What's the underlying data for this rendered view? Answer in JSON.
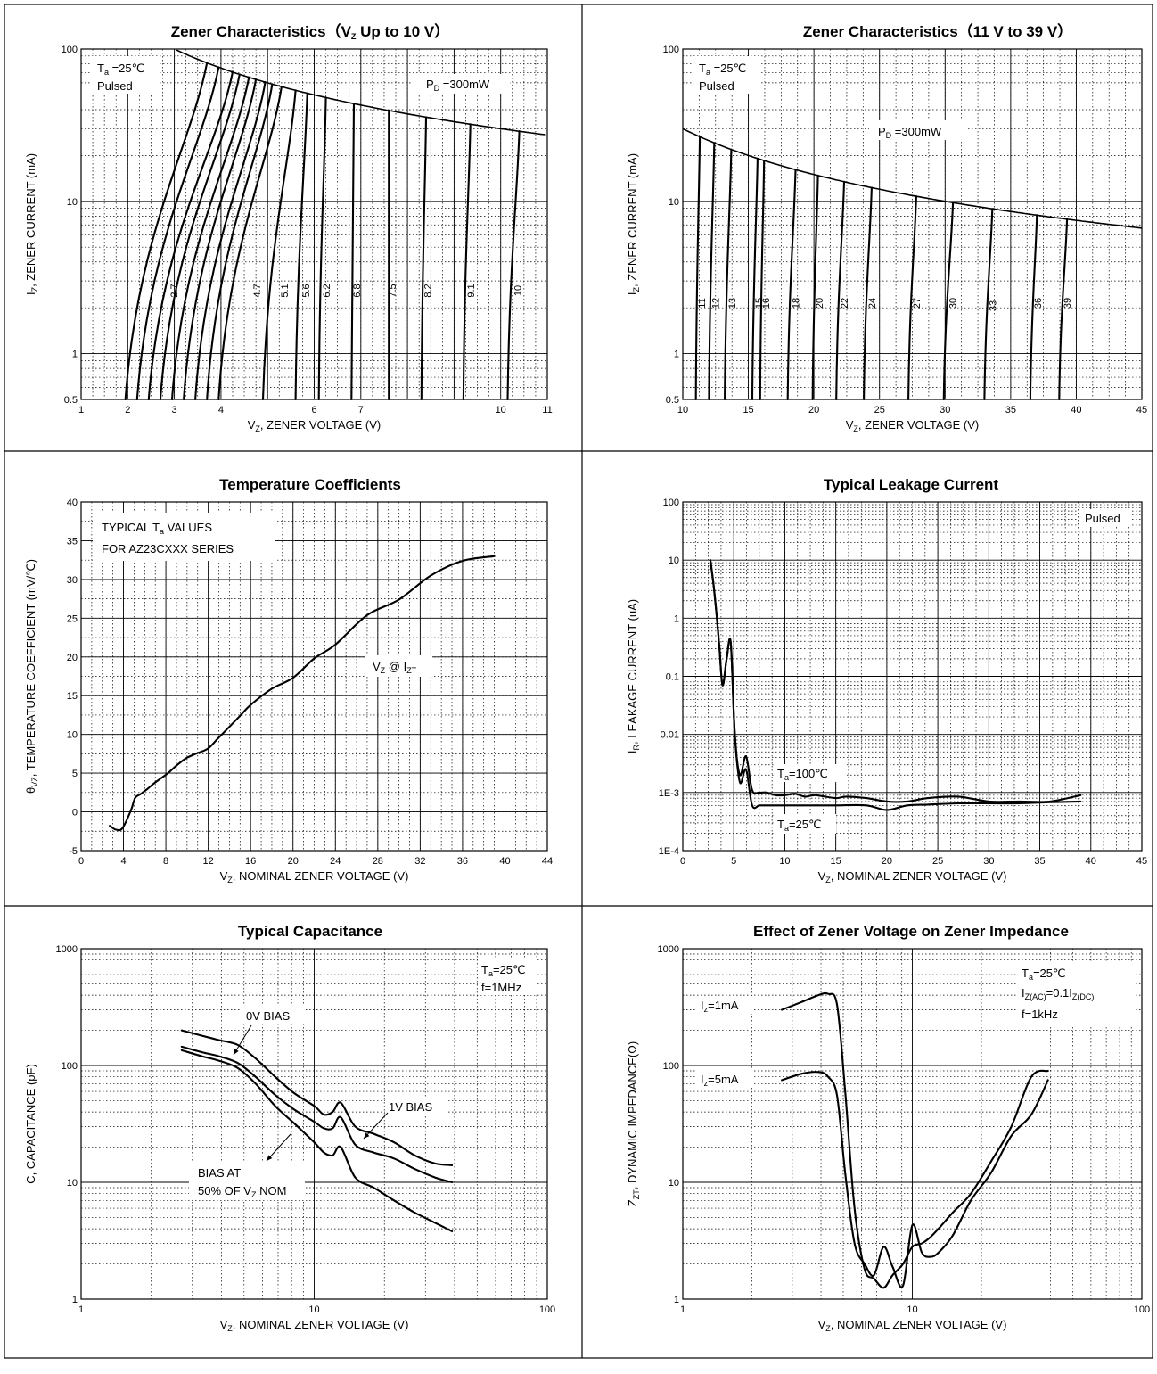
{
  "chart_data": [
    {
      "id": "zener-low",
      "type": "line",
      "title": "Zener Characteristics（V_Z Up to 10 V）",
      "title_main": "Zener Characteristics（V",
      "title_sub": "Z",
      "title_tail": " Up to 10 V）",
      "xlabel": "V_Z, ZENER VOLTAGE (V)",
      "ylabel": "I_Z, ZENER CURRENT (mA)",
      "xscale": "linear",
      "yscale": "log",
      "xlim": [
        1,
        11
      ],
      "ylim": [
        0.5,
        100
      ],
      "x_ticks": [
        "1",
        "2",
        "3",
        "4",
        "5",
        "6",
        "7",
        "8",
        "9",
        "10",
        "11"
      ],
      "x_tick_labels": [
        "1",
        "2",
        "3",
        "4",
        "",
        "6",
        "7",
        "",
        "",
        "10",
        "11"
      ],
      "y_ticks": [
        "0.5",
        "1",
        "10",
        "100"
      ],
      "annotations": {
        "temp": "T_a =25℃",
        "mode": "Pulsed",
        "power": "P_D =300mW"
      },
      "power_limit_mw": 300,
      "series": [
        {
          "label": "2.7",
          "at_0_5mA": 1.95,
          "at_limit": 3.7
        },
        {
          "label": "",
          "at_0_5mA": 2.2,
          "at_limit": 3.95
        },
        {
          "label": "",
          "at_0_5mA": 2.45,
          "at_limit": 4.25
        },
        {
          "label": "",
          "at_0_5mA": 2.7,
          "at_limit": 4.4
        },
        {
          "label": "",
          "at_0_5mA": 2.95,
          "at_limit": 4.6
        },
        {
          "label": "",
          "at_0_5mA": 3.2,
          "at_limit": 4.75
        },
        {
          "label": "",
          "at_0_5mA": 3.45,
          "at_limit": 4.95
        },
        {
          "label": "",
          "at_0_5mA": 3.7,
          "at_limit": 5.1
        },
        {
          "label": "4.7",
          "at_0_5mA": 3.95,
          "at_limit": 5.3
        },
        {
          "label": "5.1",
          "at_0_5mA": 4.9,
          "at_limit": 5.6
        },
        {
          "label": "5.6",
          "at_0_5mA": 5.6,
          "at_limit": 5.85
        },
        {
          "label": "6.2",
          "at_0_5mA": 6.1,
          "at_limit": 6.25
        },
        {
          "label": "6.8",
          "at_0_5mA": 6.8,
          "at_limit": 6.85
        },
        {
          "label": "7.5",
          "at_0_5mA": 7.6,
          "at_limit": 7.6
        },
        {
          "label": "8.2",
          "at_0_5mA": 8.3,
          "at_limit": 8.4
        },
        {
          "label": "9.1",
          "at_0_5mA": 9.2,
          "at_limit": 9.35
        },
        {
          "label": "10",
          "at_0_5mA": 10.15,
          "at_limit": 10.4
        }
      ]
    },
    {
      "id": "zener-high",
      "type": "line",
      "title": "Zener Characteristics（11 V to 39 V）",
      "xlabel": "V_Z, ZENER VOLTAGE (V)",
      "ylabel": "I_Z, ZENER CURRENT (mA)",
      "xscale": "linear",
      "yscale": "log",
      "xlim": [
        10,
        45
      ],
      "ylim": [
        0.5,
        100
      ],
      "x_ticks": [
        "10",
        "15",
        "20",
        "25",
        "30",
        "35",
        "40",
        "45"
      ],
      "y_ticks": [
        "0.5",
        "1",
        "10",
        "100"
      ],
      "annotations": {
        "temp": "T_a =25℃",
        "mode": "Pulsed",
        "power": "P_D =300mW"
      },
      "power_limit_mw": 300,
      "series": [
        {
          "label": "11",
          "at_0_5mA": 11.0,
          "at_limit": 11.3
        },
        {
          "label": "12",
          "at_0_5mA": 12.0,
          "at_limit": 12.4
        },
        {
          "label": "13",
          "at_0_5mA": 13.2,
          "at_limit": 13.7
        },
        {
          "label": "15",
          "at_0_5mA": 15.3,
          "at_limit": 15.7
        },
        {
          "label": "16",
          "at_0_5mA": 15.9,
          "at_limit": 16.2
        },
        {
          "label": "18",
          "at_0_5mA": 18.0,
          "at_limit": 18.6
        },
        {
          "label": "20",
          "at_0_5mA": 19.9,
          "at_limit": 20.3
        },
        {
          "label": "22",
          "at_0_5mA": 21.7,
          "at_limit": 22.3
        },
        {
          "label": "24",
          "at_0_5mA": 23.8,
          "at_limit": 24.4
        },
        {
          "label": "27",
          "at_0_5mA": 27.2,
          "at_limit": 27.8
        },
        {
          "label": "30",
          "at_0_5mA": 29.9,
          "at_limit": 30.6
        },
        {
          "label": "33",
          "at_0_5mA": 33.0,
          "at_limit": 33.6
        },
        {
          "label": "36",
          "at_0_5mA": 36.5,
          "at_limit": 37.0
        },
        {
          "label": "39",
          "at_0_5mA": 38.7,
          "at_limit": 39.3
        }
      ]
    },
    {
      "id": "tempco",
      "type": "line",
      "title": "Temperature Coefficients",
      "xlabel": "V_Z, NOMINAL ZENER VOLTAGE (V)",
      "ylabel": "θ_VZ, TEMPERATURE COEFFICIENT (mV/℃)",
      "xscale": "linear",
      "yscale": "linear",
      "xlim": [
        0,
        44
      ],
      "ylim": [
        -5,
        40
      ],
      "x_ticks": [
        "0",
        "4",
        "8",
        "12",
        "16",
        "20",
        "24",
        "28",
        "32",
        "36",
        "40",
        "44"
      ],
      "y_ticks": [
        "-5",
        "0",
        "5",
        "10",
        "15",
        "20",
        "25",
        "30",
        "35",
        "40"
      ],
      "annotations": {
        "line1": "TYPICAL T_a VALUES",
        "line2": "FOR AZ23CXXX SERIES",
        "curve": "V_Z @ I_ZT"
      },
      "series": [
        {
          "name": "V_Z @ I_ZT",
          "x": [
            2.7,
            3.3,
            3.9,
            4.7,
            5.1,
            5.6,
            6.2,
            6.8,
            7.5,
            8.2,
            9.1,
            10,
            11,
            12,
            13,
            15,
            16,
            18,
            20,
            22,
            24,
            27,
            30,
            33,
            36,
            39
          ],
          "y": [
            -1.8,
            -2.3,
            -2.1,
            0.2,
            1.8,
            2.3,
            2.9,
            3.6,
            4.3,
            5.0,
            6.1,
            7.0,
            7.6,
            8.2,
            9.6,
            12.4,
            13.8,
            15.9,
            17.3,
            19.8,
            21.6,
            25.4,
            27.4,
            30.5,
            32.4,
            33.0
          ]
        }
      ]
    },
    {
      "id": "leakage",
      "type": "line",
      "title": "Typical Leakage Current",
      "xlabel": "V_Z, NOMINAL ZENER VOLTAGE (V)",
      "ylabel": "I_R, LEAKAGE CURRENT (uA)",
      "xscale": "linear",
      "yscale": "log",
      "xlim": [
        0,
        45
      ],
      "ylim": [
        0.0001,
        100
      ],
      "x_ticks": [
        "0",
        "5",
        "10",
        "15",
        "20",
        "25",
        "30",
        "35",
        "40",
        "45"
      ],
      "y_ticks": [
        "1E-4",
        "1E-3",
        "0.01",
        "0.1",
        "1",
        "10",
        "100"
      ],
      "annotations": {
        "mode": "Pulsed",
        "hot": "T_a=100℃",
        "cold": "T_a=25℃"
      },
      "series": [
        {
          "name": "T_a=100℃",
          "x": [
            2.7,
            3.0,
            3.3,
            3.6,
            3.9,
            4.3,
            4.7,
            5.1,
            5.6,
            6.2,
            6.8,
            7.5,
            8.2,
            9.1,
            10,
            11,
            12,
            13,
            15,
            16,
            18,
            20,
            22,
            24,
            27,
            30,
            33,
            36,
            39
          ],
          "y": [
            10,
            4,
            1.2,
            0.3,
            0.07,
            0.2,
            0.38,
            0.01,
            0.002,
            0.0042,
            0.0011,
            0.001,
            0.001,
            0.0009,
            0.0009,
            0.00095,
            0.00085,
            0.0009,
            0.0008,
            0.00085,
            0.0008,
            0.0007,
            0.0007,
            0.0008,
            0.00085,
            0.0007,
            0.0007,
            0.0007,
            0.0009
          ]
        },
        {
          "name": "T_a=25℃",
          "x": [
            2.7,
            3.0,
            3.3,
            3.6,
            3.9,
            4.3,
            4.7,
            5.1,
            5.6,
            6.2,
            6.8,
            7.5,
            8.2,
            9.1,
            10,
            12,
            15,
            18,
            20,
            22,
            24,
            27,
            30,
            33,
            36,
            39
          ],
          "y": [
            10,
            4,
            1.2,
            0.3,
            0.07,
            0.2,
            0.38,
            0.01,
            0.0015,
            0.0025,
            0.0006,
            0.0006,
            0.0006,
            0.0006,
            0.0006,
            0.0006,
            0.0006,
            0.0006,
            0.0005,
            0.0006,
            0.00062,
            0.00065,
            0.00065,
            0.00065,
            0.00068,
            0.0007
          ]
        }
      ]
    },
    {
      "id": "capacitance",
      "type": "line",
      "title": "Typical Capacitance",
      "xlabel": "V_Z, NOMINAL ZENER VOLTAGE (V)",
      "ylabel": "C, CAPACITANCE (pF)",
      "xscale": "log",
      "yscale": "log",
      "xlim": [
        1,
        100
      ],
      "ylim": [
        1,
        1000
      ],
      "x_ticks": [
        "1",
        "10",
        "100"
      ],
      "y_ticks": [
        "1",
        "10",
        "100",
        "1000"
      ],
      "annotations": {
        "temp": "T_a=25℃",
        "freq": "f=1MHz",
        "zero": "0V BIAS",
        "one": "1V BIAS",
        "half1": "BIAS AT",
        "half2": "50% OF V_Z NOM"
      },
      "series": [
        {
          "name": "0V BIAS",
          "x": [
            2.7,
            3.3,
            3.9,
            4.7,
            5.6,
            6.8,
            8.2,
            10,
            11,
            12,
            13,
            15,
            18,
            22,
            27,
            33,
            39
          ],
          "y": [
            200,
            180,
            165,
            150,
            115,
            80,
            58,
            45,
            38,
            40,
            48,
            30,
            26,
            22,
            17,
            14.5,
            14
          ]
        },
        {
          "name": "1V BIAS",
          "x": [
            2.7,
            3.3,
            3.9,
            4.7,
            5.6,
            6.8,
            8.2,
            10,
            11,
            12,
            13,
            15,
            18,
            22,
            27,
            33,
            39
          ],
          "y": [
            145,
            130,
            120,
            105,
            80,
            56,
            42,
            33,
            29,
            29,
            36,
            21,
            18,
            16,
            13,
            11,
            10
          ]
        },
        {
          "name": "BIAS AT 50% OF V_Z NOM",
          "x": [
            2.7,
            3.3,
            3.9,
            4.7,
            5.6,
            6.8,
            8.2,
            10,
            11,
            12,
            13,
            15,
            18,
            22,
            27,
            33,
            39
          ],
          "y": [
            135,
            120,
            110,
            95,
            70,
            45,
            32,
            22,
            18,
            17,
            20,
            11,
            9,
            7,
            5.5,
            4.5,
            3.8
          ]
        }
      ]
    },
    {
      "id": "impedance",
      "type": "line",
      "title": "Effect of Zener Voltage on Zener Impedance",
      "xlabel": "V_Z, NOMINAL ZENER VOLTAGE (V)",
      "ylabel": "Z_ZT, DYNAMIC IMPEDANCE(Ω)",
      "xscale": "log",
      "yscale": "log",
      "xlim": [
        1,
        100
      ],
      "ylim": [
        1,
        1000
      ],
      "x_ticks": [
        "1",
        "10",
        "100"
      ],
      "x_tick_labels": [
        "1",
        "10",
        "100"
      ],
      "y_ticks": [
        "1",
        "10",
        "100",
        "1000"
      ],
      "annotations": {
        "temp": "T_a=25℃",
        "iac": "I_Z(AC)=0.1I_Z(DC)",
        "freq": "f=1kHz",
        "i1": "I_z=1mA",
        "i5": "I_z=5mA"
      },
      "series": [
        {
          "name": "I_z=1mA",
          "x": [
            2.7,
            3.3,
            3.9,
            4.3,
            4.7,
            5.1,
            5.6,
            6.2,
            6.8,
            7.5,
            8.2,
            9.1,
            10,
            11,
            12,
            13,
            15,
            18,
            22,
            27,
            33,
            39
          ],
          "y": [
            300,
            350,
            400,
            410,
            330,
            60,
            6,
            1.8,
            1.5,
            1.25,
            1.6,
            2.0,
            2.8,
            3.0,
            3.4,
            4.0,
            5.5,
            8,
            15,
            30,
            80,
            90
          ]
        },
        {
          "name": "I_z=5mA",
          "x": [
            2.7,
            3.3,
            3.9,
            4.3,
            4.7,
            5.1,
            5.6,
            6.2,
            6.8,
            7.5,
            8.2,
            9.1,
            10,
            11,
            12,
            13,
            15,
            18,
            22,
            27,
            33,
            39
          ],
          "y": [
            75,
            85,
            88,
            80,
            55,
            12,
            3,
            2.0,
            1.6,
            2.8,
            1.9,
            1.3,
            4.3,
            2.5,
            2.3,
            2.5,
            3.5,
            7,
            12,
            25,
            38,
            75
          ]
        }
      ]
    }
  ]
}
